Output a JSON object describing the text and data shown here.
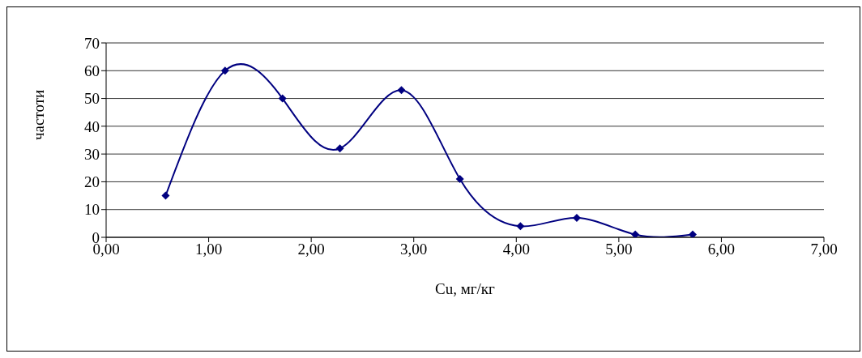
{
  "chart_data": {
    "type": "line",
    "xlabel": "Cu, мг/кг",
    "ylabel": "частоти",
    "x": [
      0.58,
      1.16,
      1.72,
      2.28,
      2.88,
      3.45,
      4.04,
      4.59,
      5.16,
      5.72
    ],
    "series": [
      {
        "color": "#000080",
        "values": [
          15,
          60,
          50,
          32,
          53,
          21,
          4,
          7,
          1,
          1
        ]
      }
    ],
    "xlim": [
      0,
      7
    ],
    "xticks": [
      {
        "value": 0,
        "label": "0,00"
      },
      {
        "value": 1,
        "label": "1,00"
      },
      {
        "value": 2,
        "label": "2,00"
      },
      {
        "value": 3,
        "label": "3,00"
      },
      {
        "value": 4,
        "label": "4,00"
      },
      {
        "value": 5,
        "label": "5,00"
      },
      {
        "value": 6,
        "label": "6,00"
      },
      {
        "value": 7,
        "label": "7,00"
      }
    ],
    "ylim": [
      0,
      70
    ],
    "yticks": [
      0,
      10,
      20,
      30,
      40,
      50,
      60,
      70
    ],
    "grid": "y",
    "marker": "diamond",
    "line_style": "solid",
    "legend": false
  }
}
